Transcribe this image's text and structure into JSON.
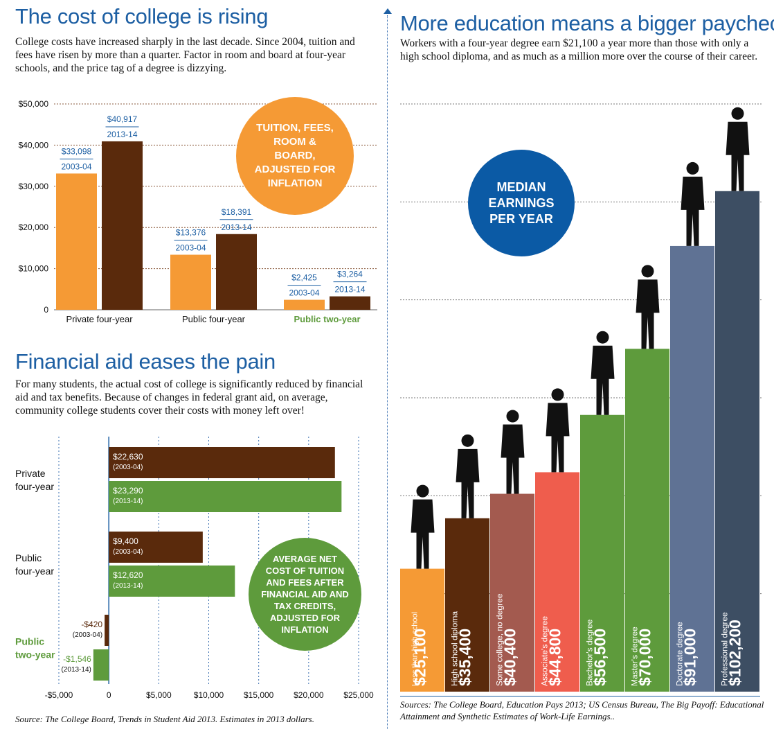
{
  "left": {
    "cost": {
      "title": "The cost of college is rising",
      "intro": "College costs have increased sharply in the last decade. Since 2004, tuition and fees have risen by more than a quarter. Factor in room and board at four-year schools, and the price tag of a degree is dizzying.",
      "badge": "TUITION, FEES, ROOM & BOARD, ADJUSTED FOR INFLATION"
    },
    "aid": {
      "title": "Financial aid eases the pain",
      "intro": "For many students, the actual cost of college is significantly reduced by financial aid and tax benefits. Because of changes in federal grant aid, on average, community college students cover their costs with money left over!",
      "badge": "AVERAGE NET COST OF TUITION AND FEES AFTER FINANCIAL AID AND TAX CREDITS, ADJUSTED FOR INFLATION",
      "source": "Source: The College Board, Trends in Student Aid 2013. Estimates in 2013 dollars."
    }
  },
  "right": {
    "title": "More education means a bigger paycheck",
    "intro": "Workers with a four-year degree earn $21,100 a year more than those with only a high school diploma, and as much as a million more over the course of their career.",
    "badge": "MEDIAN EARNINGS PER YEAR",
    "source": "Sources: The College Board, Education Pays 2013; US Census Bureau, The Big Payoff: Educational Attainment and Synthetic Estimates of Work-Life Earnings.."
  },
  "colors": {
    "title_blue": "#1d5fa3",
    "orange": "#f59a35",
    "brown": "#5a2a0c",
    "green": "#5e9b3c",
    "navy_circle": "#0b5aa5"
  },
  "chart_data": [
    {
      "type": "bar",
      "categories": [
        "Private four-year",
        "Public four-year",
        "Public two-year"
      ],
      "series": [
        {
          "name": "2003-04",
          "values": [
            33098,
            13376,
            2425
          ],
          "labels": [
            "$33,098",
            "$13,376",
            "$2,425"
          ],
          "color": "#f59a35"
        },
        {
          "name": "2013-14",
          "values": [
            40917,
            18391,
            3264
          ],
          "labels": [
            "$40,917",
            "$18,391",
            "$3,264"
          ],
          "color": "#5a2a0c"
        }
      ],
      "y_ticks": [
        "0",
        "$10,000",
        "$20,000",
        "$30,000",
        "$40,000",
        "$50,000"
      ],
      "ylim": [
        0,
        50000
      ],
      "grid": true
    },
    {
      "type": "bar",
      "orientation": "horizontal",
      "categories": [
        "Private\nfour-year",
        "Public\nfour-year",
        "Public\ntwo-year"
      ],
      "series": [
        {
          "name": "(2003-04)",
          "values": [
            22630,
            9400,
            -420
          ],
          "labels": [
            "$22,630",
            "$9,400",
            "-$420"
          ],
          "color": "#5a2a0c"
        },
        {
          "name": "(2013-14)",
          "values": [
            23290,
            12620,
            -1546
          ],
          "labels": [
            "$23,290",
            "$12,620",
            "-$1,546"
          ],
          "color": "#5e9b3c"
        }
      ],
      "x_ticks": [
        "-$5,000",
        "0",
        "$5,000",
        "$10,000",
        "$15,000",
        "$20,000",
        "$25,000"
      ],
      "xlim": [
        -5000,
        25000
      ],
      "grid": true
    },
    {
      "type": "bar",
      "categories": [
        "Less than high-school diploma",
        "High school diploma",
        "Some college, no degree",
        "Associate's degree",
        "Bachelor's degree",
        "Master's degree",
        "Doctorate degree",
        "Professional degree"
      ],
      "values": [
        25100,
        35400,
        40400,
        44800,
        56500,
        70000,
        91000,
        102200
      ],
      "value_labels": [
        "$25,100",
        "$35,400",
        "$40,400",
        "$44,800",
        "$56,500",
        "$70,000",
        "$91,000",
        "$102,200"
      ],
      "colors": [
        "#f59a35",
        "#5a2a0c",
        "#a35a4f",
        "#ef5d4d",
        "#5e9b3c",
        "#5e9b3c",
        "#5f7294",
        "#3d4e63"
      ],
      "ylim": [
        0,
        120000
      ],
      "grid": true
    }
  ]
}
